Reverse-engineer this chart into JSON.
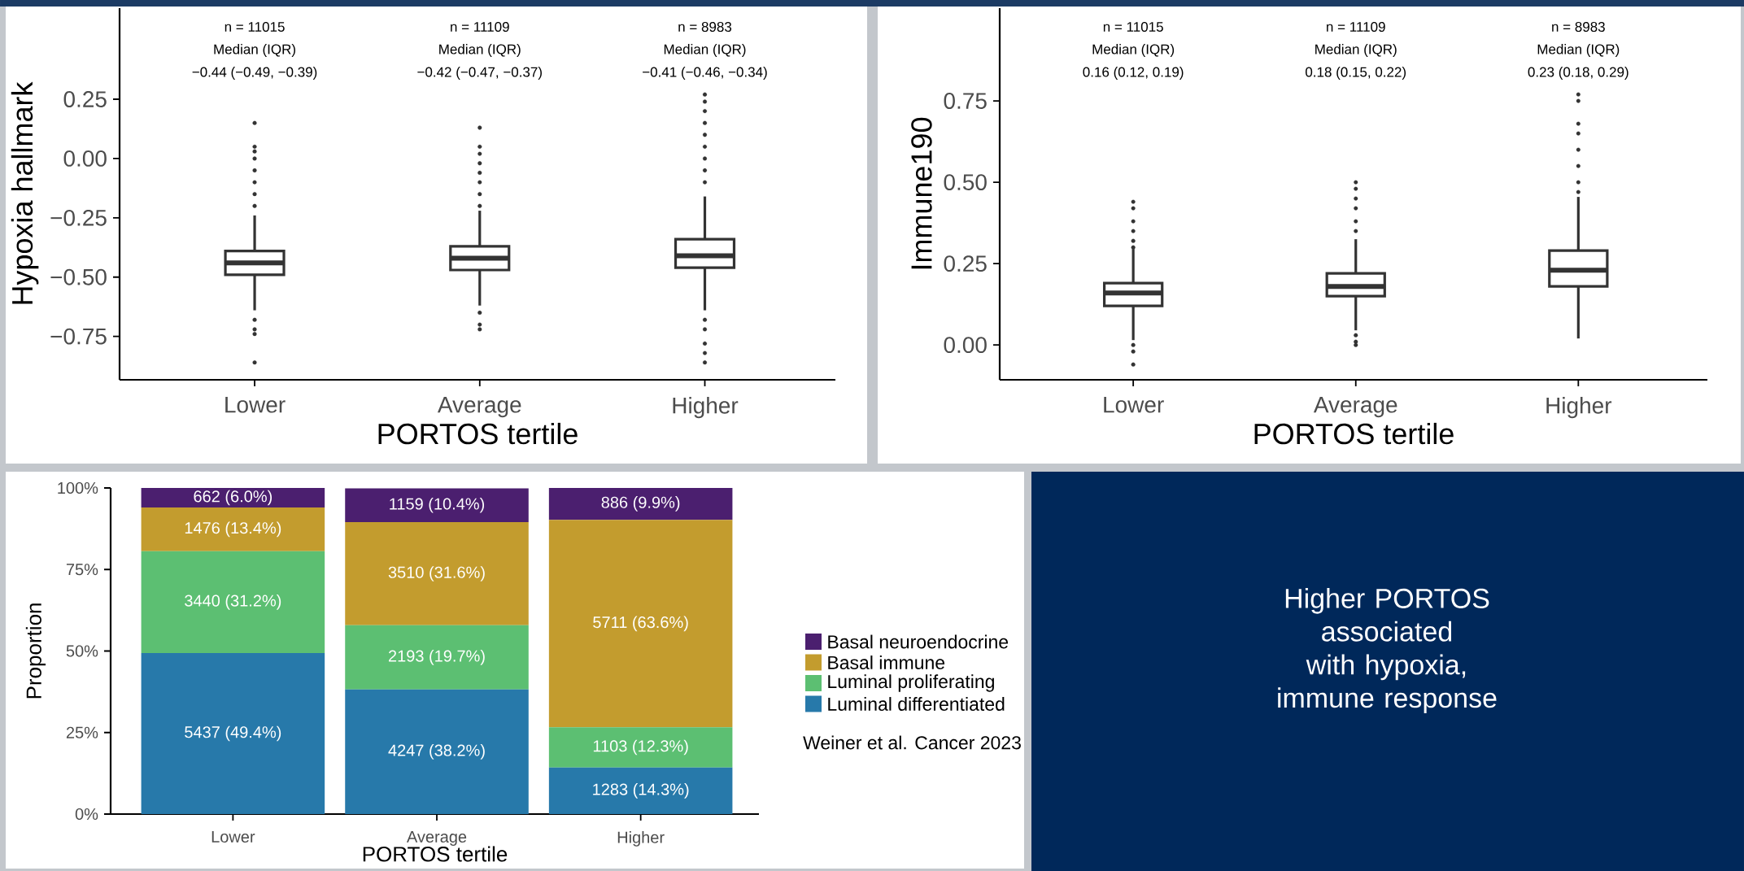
{
  "chart_data": [
    {
      "type": "box",
      "categories": [
        "Lower",
        "Average",
        "Higher"
      ],
      "xlabel": "PORTOS tertile",
      "ylabel": "Hypoxia hallmark",
      "ylim": [
        -0.933,
        0.634
      ],
      "yticks": [
        {
          "value": -0.75,
          "label": "−0.75"
        },
        {
          "value": -0.5,
          "label": "−0.50"
        },
        {
          "value": -0.25,
          "label": "−0.25"
        },
        {
          "value": 0,
          "label": "0.00"
        },
        {
          "value": 0.25,
          "label": "0.25"
        }
      ],
      "series": [
        {
          "color": "#333333",
          "boxes": [
            {
              "low": -0.64,
              "q1": -0.49,
              "median": -0.44,
              "q3": -0.39,
              "high": -0.24,
              "outliers": [
                0.15,
                0.05,
                0.03,
                0.0,
                -0.05,
                -0.1,
                -0.15,
                -0.2,
                -0.68,
                -0.72,
                -0.74,
                -0.86
              ]
            },
            {
              "low": -0.62,
              "q1": -0.47,
              "median": -0.42,
              "q3": -0.37,
              "high": -0.22,
              "outliers": [
                0.13,
                0.05,
                0.02,
                -0.02,
                -0.06,
                -0.1,
                -0.15,
                -0.2,
                -0.65,
                -0.7,
                -0.72
              ]
            },
            {
              "low": -0.64,
              "q1": -0.46,
              "median": -0.41,
              "q3": -0.34,
              "high": -0.16,
              "outliers": [
                0.27,
                0.24,
                0.2,
                0.15,
                0.1,
                0.05,
                0.0,
                -0.05,
                -0.1,
                -0.68,
                -0.72,
                -0.78,
                -0.82,
                -0.86
              ]
            }
          ]
        }
      ],
      "annotations": [
        "n = 11015",
        "Median (IQR)",
        "−0.44 (−0.49, −0.39)",
        "n = 11109",
        "Median (IQR)",
        "−0.42 (−0.47, −0.37)",
        "n = 8983",
        "Median (IQR)",
        "−0.41 (−0.46, −0.34)"
      ]
    },
    {
      "type": "box",
      "categories": [
        "Lower",
        "Average",
        "Higher"
      ],
      "xlabel": "PORTOS tertile",
      "ylabel": "Immune190",
      "ylim": [
        -0.107,
        1.035
      ],
      "yticks": [
        {
          "value": 0,
          "label": "0.00"
        },
        {
          "value": 0.25,
          "label": "0.25"
        },
        {
          "value": 0.5,
          "label": "0.50"
        },
        {
          "value": 0.75,
          "label": "0.75"
        }
      ],
      "series": [
        {
          "color": "#333333",
          "boxes": [
            {
              "low": 0.015,
              "q1": 0.12,
              "median": 0.16,
              "q3": 0.19,
              "high": 0.295,
              "outliers": [
                0.44,
                0.42,
                0.38,
                0.35,
                0.32,
                0.3,
                0.0,
                -0.02,
                -0.06
              ]
            },
            {
              "low": 0.045,
              "q1": 0.15,
              "median": 0.18,
              "q3": 0.22,
              "high": 0.325,
              "outliers": [
                0.5,
                0.48,
                0.45,
                0.42,
                0.38,
                0.35,
                0.03,
                0.01,
                0.0
              ]
            },
            {
              "low": 0.02,
              "q1": 0.18,
              "median": 0.23,
              "q3": 0.29,
              "high": 0.455,
              "outliers": [
                0.77,
                0.75,
                0.68,
                0.65,
                0.6,
                0.55,
                0.5,
                0.47
              ]
            }
          ]
        }
      ],
      "annotations": [
        "n = 11015",
        "Median (IQR)",
        "0.16 (0.12, 0.19)",
        "n = 11109",
        "Median (IQR)",
        "0.18 (0.15, 0.22)",
        "n = 8983",
        "Median (IQR)",
        "0.23 (0.18, 0.29)"
      ]
    },
    {
      "type": "bar",
      "stacked": true,
      "categories": [
        "Lower",
        "Average",
        "Higher"
      ],
      "xlabel": "PORTOS tertile",
      "ylabel": "Proportion",
      "ylim": [
        0,
        100
      ],
      "yticks": [
        {
          "value": 0,
          "label": "0%"
        },
        {
          "value": 25,
          "label": "25%"
        },
        {
          "value": 50,
          "label": "50%"
        },
        {
          "value": 75,
          "label": "75%"
        },
        {
          "value": 100,
          "label": "100%"
        }
      ],
      "legend": "right",
      "series": [
        {
          "name": "Luminal differentiated",
          "color": "#2779aa",
          "values": [
            49.4,
            38.2,
            14.3
          ],
          "value_labels": [
            "5437 (49.4%)",
            "4247 (38.2%)",
            "1283 (14.3%)"
          ]
        },
        {
          "name": "Luminal proliferating",
          "color": "#5cbf72",
          "values": [
            31.2,
            19.7,
            12.3
          ],
          "value_labels": [
            "3440 (31.2%)",
            "2193 (19.7%)",
            "1103 (12.3%)"
          ]
        },
        {
          "name": "Basal immune",
          "color": "#c39c2e",
          "values": [
            13.4,
            31.6,
            63.6
          ],
          "value_labels": [
            "1476 (13.4%)",
            "3510 (31.6%)",
            "5711 (63.6%)"
          ]
        },
        {
          "name": "Basal neuroendocrine",
          "color": "#4b1f6f",
          "values": [
            6.0,
            10.4,
            9.9
          ],
          "value_labels": [
            "662 (6.0%)",
            "1159 (10.4%)",
            "886 (9.9%)"
          ]
        }
      ],
      "annotations": [
        "Weiner et al. Cancer 2023"
      ]
    },
    {
      "type": "other",
      "title": "Higher PORTOS associated with hypoxia, immune response"
    }
  ]
}
